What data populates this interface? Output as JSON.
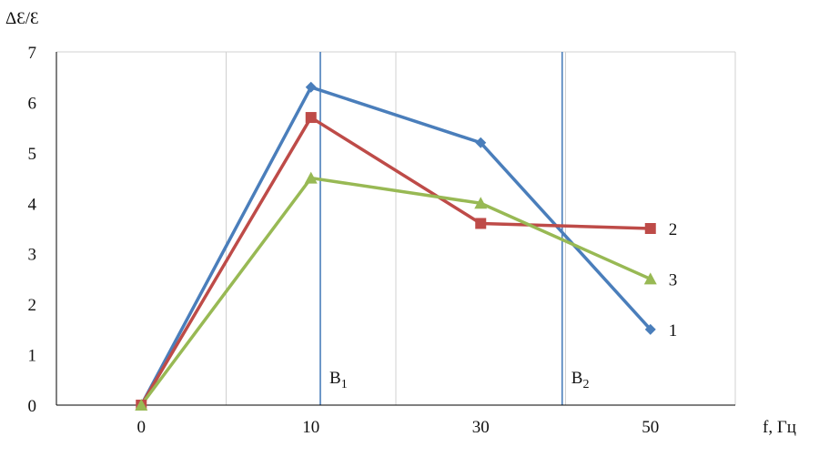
{
  "chart_data": {
    "type": "line",
    "ylabel": "ΔƐ/Ɛ",
    "xlabel": "f, Гц",
    "ylim": [
      0,
      7
    ],
    "yticks": [
      0,
      1,
      2,
      3,
      4,
      5,
      6,
      7
    ],
    "categories": [
      "0",
      "10",
      "30",
      "50"
    ],
    "grid": "vertical",
    "series": [
      {
        "name": "1",
        "color": "#4a7ebb",
        "marker": "diamond",
        "values": [
          0,
          6.3,
          5.2,
          1.5
        ]
      },
      {
        "name": "2",
        "color": "#be4b48",
        "marker": "square",
        "values": [
          0,
          5.7,
          3.6,
          3.5
        ]
      },
      {
        "name": "3",
        "color": "#98b954",
        "marker": "triangle",
        "values": [
          0,
          4.5,
          4.0,
          2.5
        ]
      }
    ],
    "markers": [
      {
        "label": "B",
        "subscript": "1",
        "x": 11.1
      },
      {
        "label": "B",
        "subscript": "2",
        "x": 39.6
      }
    ],
    "colors": {
      "marker_line": "#4a7ebb",
      "grid": "#d0d0d0",
      "axis": "#000000"
    }
  }
}
